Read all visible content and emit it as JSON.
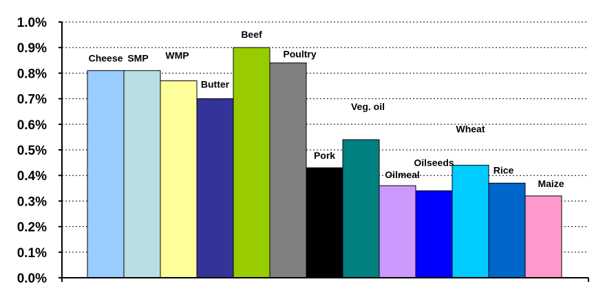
{
  "chart_data": {
    "type": "bar",
    "title": "",
    "xlabel": "",
    "ylabel": "",
    "ylim": [
      0,
      0.01
    ],
    "y_tick_step": 0.001,
    "y_ticks": [
      "0.0%",
      "0.1%",
      "0.2%",
      "0.3%",
      "0.4%",
      "0.5%",
      "0.6%",
      "0.7%",
      "0.8%",
      "0.9%",
      "1.0%"
    ],
    "grid": true,
    "categories": [
      "Cheese",
      "SMP",
      "WMP",
      "Butter",
      "Beef",
      "Poultry",
      "Pork",
      "Veg. oil",
      "Oilmeal",
      "Oilseeds",
      "Wheat",
      "Rice",
      "Maize"
    ],
    "values": [
      0.0081,
      0.0081,
      0.0077,
      0.007,
      0.009,
      0.0084,
      0.0043,
      0.0054,
      0.0036,
      0.0034,
      0.0044,
      0.0037,
      0.0032
    ],
    "colors": [
      "#99ccff",
      "#b8dfe3",
      "#ffff99",
      "#333399",
      "#99cc00",
      "#808080",
      "#000000",
      "#008080",
      "#cc99ff",
      "#0000ff",
      "#00ccff",
      "#0066cc",
      "#ff99cc"
    ]
  }
}
